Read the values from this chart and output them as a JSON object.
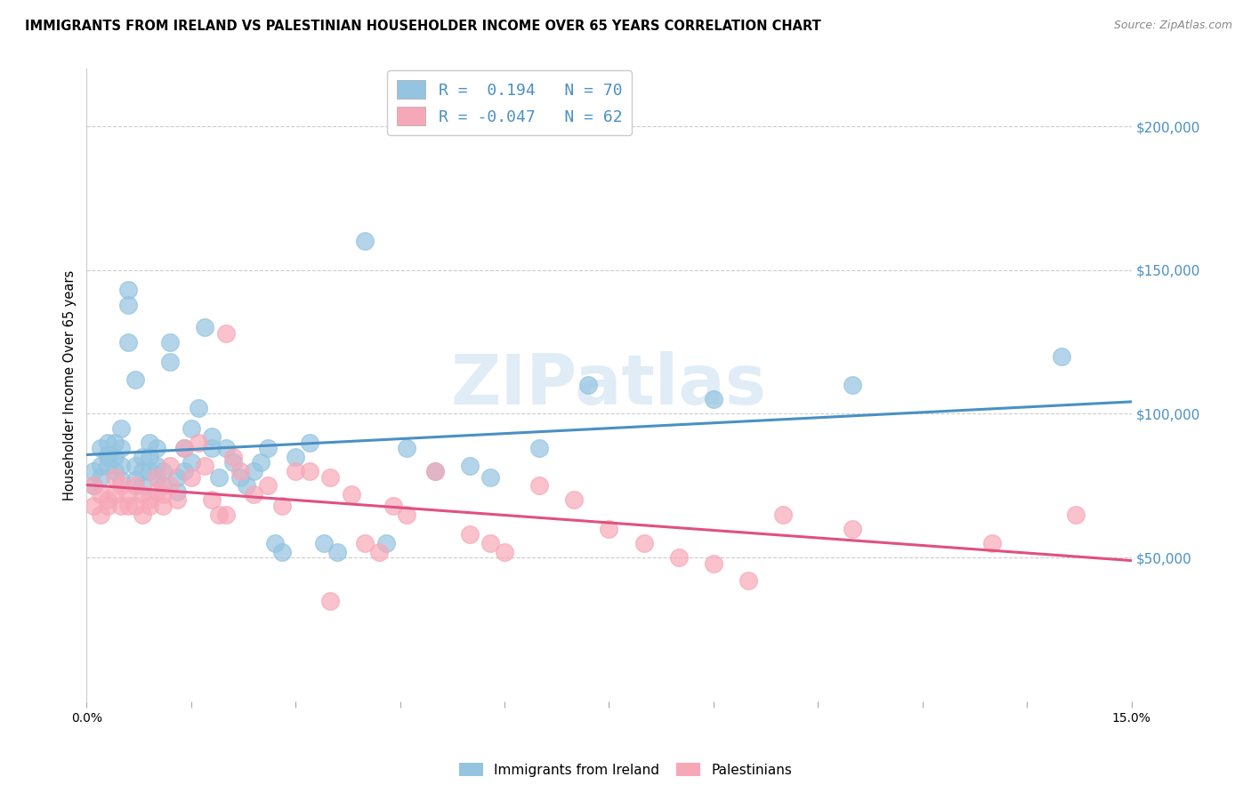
{
  "title": "IMMIGRANTS FROM IRELAND VS PALESTINIAN HOUSEHOLDER INCOME OVER 65 YEARS CORRELATION CHART",
  "source": "Source: ZipAtlas.com",
  "ylabel_label": "Householder Income Over 65 years",
  "legend_labels": [
    "Immigrants from Ireland",
    "Palestinians"
  ],
  "blue_R": "0.194",
  "blue_N": "70",
  "pink_R": "-0.047",
  "pink_N": "62",
  "blue_color": "#94c4e0",
  "pink_color": "#f7a8b8",
  "blue_line_color": "#4a90c4",
  "pink_line_color": "#e05080",
  "watermark": "ZIPatlas",
  "blue_scatter_x": [
    0.001,
    0.001,
    0.002,
    0.002,
    0.002,
    0.003,
    0.003,
    0.003,
    0.003,
    0.004,
    0.004,
    0.004,
    0.005,
    0.005,
    0.005,
    0.005,
    0.006,
    0.006,
    0.006,
    0.007,
    0.007,
    0.007,
    0.008,
    0.008,
    0.008,
    0.009,
    0.009,
    0.009,
    0.01,
    0.01,
    0.01,
    0.011,
    0.011,
    0.012,
    0.012,
    0.013,
    0.013,
    0.014,
    0.014,
    0.015,
    0.015,
    0.016,
    0.017,
    0.018,
    0.018,
    0.019,
    0.02,
    0.021,
    0.022,
    0.023,
    0.024,
    0.025,
    0.026,
    0.027,
    0.028,
    0.03,
    0.032,
    0.034,
    0.036,
    0.04,
    0.043,
    0.046,
    0.05,
    0.055,
    0.058,
    0.065,
    0.072,
    0.09,
    0.11,
    0.14
  ],
  "blue_scatter_y": [
    80000,
    75000,
    82000,
    88000,
    78000,
    85000,
    90000,
    82000,
    86000,
    90000,
    80000,
    85000,
    95000,
    88000,
    82000,
    77000,
    143000,
    138000,
    125000,
    112000,
    82000,
    77000,
    85000,
    80000,
    75000,
    90000,
    85000,
    80000,
    78000,
    88000,
    82000,
    80000,
    75000,
    125000,
    118000,
    78000,
    73000,
    80000,
    88000,
    95000,
    83000,
    102000,
    130000,
    88000,
    92000,
    78000,
    88000,
    83000,
    78000,
    75000,
    80000,
    83000,
    88000,
    55000,
    52000,
    85000,
    90000,
    55000,
    52000,
    160000,
    55000,
    88000,
    80000,
    82000,
    78000,
    88000,
    110000,
    105000,
    110000,
    120000
  ],
  "pink_scatter_x": [
    0.001,
    0.001,
    0.002,
    0.002,
    0.003,
    0.003,
    0.004,
    0.004,
    0.005,
    0.005,
    0.006,
    0.006,
    0.007,
    0.007,
    0.008,
    0.008,
    0.009,
    0.009,
    0.01,
    0.01,
    0.011,
    0.011,
    0.012,
    0.012,
    0.013,
    0.014,
    0.015,
    0.016,
    0.017,
    0.018,
    0.019,
    0.02,
    0.021,
    0.022,
    0.024,
    0.026,
    0.028,
    0.03,
    0.032,
    0.035,
    0.038,
    0.04,
    0.042,
    0.044,
    0.046,
    0.05,
    0.055,
    0.058,
    0.06,
    0.065,
    0.07,
    0.075,
    0.08,
    0.085,
    0.09,
    0.095,
    0.1,
    0.11,
    0.13,
    0.142,
    0.02,
    0.035
  ],
  "pink_scatter_y": [
    75000,
    68000,
    72000,
    65000,
    70000,
    68000,
    72000,
    78000,
    68000,
    75000,
    68000,
    72000,
    75000,
    68000,
    72000,
    65000,
    70000,
    68000,
    78000,
    73000,
    68000,
    72000,
    82000,
    75000,
    70000,
    88000,
    78000,
    90000,
    82000,
    70000,
    65000,
    65000,
    85000,
    80000,
    72000,
    75000,
    68000,
    80000,
    80000,
    78000,
    72000,
    55000,
    52000,
    68000,
    65000,
    80000,
    58000,
    55000,
    52000,
    75000,
    70000,
    60000,
    55000,
    50000,
    48000,
    42000,
    65000,
    60000,
    55000,
    65000,
    128000,
    35000
  ]
}
